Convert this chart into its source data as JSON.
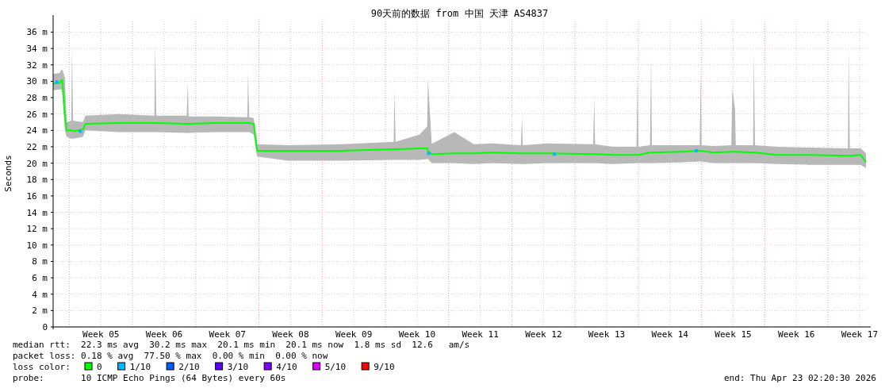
{
  "chart_data": {
    "type": "line",
    "title": "90天前的数据 from 中国 天津 AS4837",
    "ylabel": "Seconds",
    "legend_title": "loss color:",
    "legend": "bottom",
    "grid": true,
    "xlim": [
      "2026-01-23T00:00",
      "2026-04-23T00:00"
    ],
    "ylim": [
      0,
      37.5
    ],
    "xticks": [
      {
        "value": "2026-01-28T07:00",
        "label": "Week 05"
      },
      {
        "value": "2026-02-04T07:00",
        "label": "Week 06"
      },
      {
        "value": "2026-02-11T07:00",
        "label": "Week 07"
      },
      {
        "value": "2026-02-18T07:00",
        "label": "Week 08"
      },
      {
        "value": "2026-02-25T07:00",
        "label": "Week 09"
      },
      {
        "value": "2026-03-04T07:00",
        "label": "Week 10"
      },
      {
        "value": "2026-03-11T07:00",
        "label": "Week 11"
      },
      {
        "value": "2026-03-18T07:00",
        "label": "Week 12"
      },
      {
        "value": "2026-03-25T07:00",
        "label": "Week 13"
      },
      {
        "value": "2026-04-01T07:00",
        "label": "Week 14"
      },
      {
        "value": "2026-04-08T07:00",
        "label": "Week 15"
      },
      {
        "value": "2026-04-15T07:00",
        "label": "Week 16"
      },
      {
        "value": "2026-04-22T07:00",
        "label": "Week 17"
      }
    ],
    "yticks": [
      0,
      {
        "value": 2,
        "label": "2 m"
      },
      {
        "value": 4,
        "label": "4 m"
      },
      {
        "value": 6,
        "label": "6 m"
      },
      {
        "value": 8,
        "label": "8 m"
      },
      {
        "value": 10,
        "label": "10 m"
      },
      {
        "value": 12,
        "label": "12 m"
      },
      {
        "value": 14,
        "label": "14 m"
      },
      {
        "value": 16,
        "label": "16 m"
      },
      {
        "value": 18,
        "label": "18 m"
      },
      {
        "value": 20,
        "label": "20 m"
      },
      {
        "value": 22,
        "label": "22 m"
      },
      {
        "value": 24,
        "label": "24 m"
      },
      {
        "value": 26,
        "label": "26 m"
      },
      {
        "value": 28,
        "label": "28 m"
      },
      {
        "value": 30,
        "label": "30 m"
      },
      {
        "value": 32,
        "label": "32 m"
      },
      {
        "value": 34,
        "label": "34 m"
      },
      {
        "value": 36,
        "label": "36 m"
      }
    ],
    "ref_lines": [
      {
        "axis": "x",
        "value": "2026-01-24T19:00",
        "color": "#f4a0a0",
        "line_style": "dotted"
      },
      {
        "axis": "x",
        "value": "2026-01-31T19:00",
        "color": "#f4a0a0",
        "line_style": "dotted"
      },
      {
        "axis": "x",
        "value": "2026-02-07T19:00",
        "color": "#f4a0a0",
        "line_style": "dotted"
      },
      {
        "axis": "x",
        "value": "2026-02-14T19:00",
        "color": "#f4a0a0",
        "line_style": "dotted"
      },
      {
        "axis": "x",
        "value": "2026-02-21T19:00",
        "color": "#f4a0a0",
        "line_style": "dotted"
      },
      {
        "axis": "x",
        "value": "2026-02-28T19:00",
        "color": "#f4a0a0",
        "line_style": "dotted"
      },
      {
        "axis": "x",
        "value": "2026-03-07T19:00",
        "color": "#f4a0a0",
        "line_style": "dotted"
      },
      {
        "axis": "x",
        "value": "2026-03-14T19:00",
        "color": "#f4a0a0",
        "line_style": "dotted"
      },
      {
        "axis": "x",
        "value": "2026-03-21T19:00",
        "color": "#f4a0a0",
        "line_style": "dotted"
      },
      {
        "axis": "x",
        "value": "2026-03-28T19:00",
        "color": "#f4a0a0",
        "line_style": "dotted"
      },
      {
        "axis": "x",
        "value": "2026-04-04T19:00",
        "color": "#f4a0a0",
        "line_style": "dotted"
      },
      {
        "axis": "x",
        "value": "2026-04-11T19:00",
        "color": "#f4a0a0",
        "line_style": "dotted"
      },
      {
        "axis": "x",
        "value": "2026-04-18T19:00",
        "color": "#f4a0a0",
        "line_style": "dotted"
      }
    ],
    "series": [
      {
        "name": "0",
        "color": "#00ff00",
        "type": "line",
        "line_style": "solid",
        "x": [
          "2026-01-23T00:00",
          "2026-01-23T17:00",
          "2026-01-24T00:00",
          "2026-01-24T07:00",
          "2026-01-24T12:00",
          "2026-01-25T00:00",
          "2026-01-25T02:00",
          "2026-01-25T05:00",
          "2026-01-26T07:00",
          "2026-01-26T14:00",
          "2026-01-30T07:00",
          "2026-02-03T05:00",
          "2026-02-03T07:00",
          "2026-02-03T10:00",
          "2026-02-06T19:00",
          "2026-02-06T22:00",
          "2026-02-07T00:00",
          "2026-02-10T00:00",
          "2026-02-13T12:00",
          "2026-02-13T14:00",
          "2026-02-13T17:00",
          "2026-02-14T05:00",
          "2026-02-14T14:00",
          "2026-02-18T00:00",
          "2026-02-24T00:00",
          "2026-03-01T17:00",
          "2026-03-01T19:00",
          "2026-03-01T22:00",
          "2026-03-04T14:00",
          "2026-03-05T10:00",
          "2026-03-05T12:00",
          "2026-03-05T22:00",
          "2026-03-06T00:00",
          "2026-03-08T10:00",
          "2026-03-10T14:00",
          "2026-03-12T14:00",
          "2026-03-15T19:00",
          "2026-03-15T22:00",
          "2026-03-16T00:00",
          "2026-03-18T17:00",
          "2026-03-23T19:00",
          "2026-03-23T22:00",
          "2026-03-24T00:00",
          "2026-03-26T00:00",
          "2026-03-28T14:00",
          "2026-03-28T17:00",
          "2026-03-28T19:00",
          "2026-03-30T02:00",
          "2026-03-30T05:00",
          "2026-03-30T07:00",
          "2026-04-02T14:00",
          "2026-04-04T14:00",
          "2026-04-04T17:00",
          "2026-04-04T19:00",
          "2026-04-06T02:00",
          "2026-04-08T02:00",
          "2026-04-08T05:00",
          "2026-04-08T12:00",
          "2026-04-08T14:00",
          "2026-04-10T12:00",
          "2026-04-10T14:00",
          "2026-04-10T17:00",
          "2026-04-13T05:00",
          "2026-04-16T17:00",
          "2026-04-21T00:00",
          "2026-04-21T02:00",
          "2026-04-21T05:00",
          "2026-04-22T10:00",
          "2026-04-23T00:00"
        ],
        "values": [
          29.7,
          29.8,
          30.2,
          26.0,
          24.0,
          24.0,
          24.0,
          23.9,
          24.1,
          24.8,
          24.9,
          24.9,
          24.9,
          24.9,
          24.8,
          24.8,
          24.8,
          24.9,
          24.9,
          24.9,
          24.9,
          24.8,
          21.5,
          21.5,
          21.5,
          21.7,
          21.7,
          21.7,
          21.8,
          21.8,
          21.5,
          21.1,
          21.1,
          21.2,
          21.2,
          21.3,
          21.2,
          21.2,
          21.2,
          21.2,
          21.1,
          21.1,
          21.1,
          21.0,
          21.0,
          21.0,
          21.0,
          21.3,
          21.3,
          21.3,
          21.4,
          21.5,
          21.5,
          21.5,
          21.3,
          21.4,
          21.4,
          21.4,
          21.4,
          21.3,
          21.3,
          21.3,
          21.0,
          21.0,
          20.9,
          20.9,
          20.9,
          21.0,
          20.1
        ],
        "lower": [
          28.9,
          29,
          29,
          24,
          23.2,
          23.0,
          23.0,
          23.0,
          23.2,
          24.0,
          23.8,
          23.8,
          23.8,
          23.8,
          23.7,
          23.7,
          23.7,
          23.8,
          23.8,
          23.8,
          23.8,
          23.5,
          20.8,
          20.3,
          20.3,
          20.4,
          20.4,
          20.4,
          20.4,
          20.5,
          20.5,
          20.0,
          20.0,
          20.0,
          19.9,
          20.0,
          19.9,
          19.9,
          19.9,
          20.0,
          20.0,
          20.0,
          20.0,
          19.9,
          20.0,
          20.0,
          20.0,
          20.0,
          20.0,
          20.0,
          20.1,
          20.2,
          20.2,
          20.2,
          20.0,
          20.0,
          20.0,
          20.0,
          20.0,
          20.0,
          20.0,
          20.0,
          19.9,
          19.8,
          19.8,
          19.8,
          19.8,
          19.8,
          19.4
        ],
        "upper": [
          30.9,
          31,
          31.5,
          30.5,
          25.0,
          25.2,
          33.8,
          25.2,
          25.0,
          25.8,
          26.0,
          25.8,
          34.5,
          25.8,
          25.8,
          29.9,
          25.7,
          25.7,
          25.6,
          31.1,
          25.6,
          25.5,
          22.3,
          22.2,
          22.3,
          22.6,
          28.9,
          22.6,
          23.5,
          24.5,
          30.3,
          22.4,
          22.4,
          23.8,
          22.3,
          22.4,
          22.2,
          25.7,
          22.2,
          22.4,
          22.3,
          28.0,
          22.3,
          22.0,
          22.0,
          31.0,
          22.0,
          22.2,
          33.0,
          22.2,
          22.2,
          22.2,
          31.2,
          22.2,
          22.1,
          22.2,
          29.1,
          26.5,
          22.2,
          22.2,
          33.5,
          22.2,
          22.0,
          21.9,
          21.8,
          33.8,
          21.8,
          21.8,
          21.2
        ]
      },
      {
        "name": "1/10",
        "color": "#00b8ff",
        "type": "scatter",
        "marker": "square",
        "x": [
          "2026-01-23T10:00",
          "2026-01-26T00:00",
          "2026-03-05T14:00",
          "2026-03-19T12:00",
          "2026-04-04T05:00"
        ],
        "values": [
          29.9,
          23.9,
          21.2,
          21.1,
          21.5
        ]
      },
      {
        "name": "2/10",
        "color": "#0059ff",
        "type": "scatter",
        "marker": "square"
      },
      {
        "name": "3/10",
        "color": "#5e00ff",
        "type": "scatter",
        "marker": "square"
      },
      {
        "name": "4/10",
        "color": "#7e00ff",
        "type": "scatter",
        "marker": "square"
      },
      {
        "name": "5/10",
        "color": "#dd00ff",
        "type": "scatter",
        "marker": "square"
      },
      {
        "name": "9/10",
        "color": "#ff0000",
        "type": "scatter",
        "marker": "square"
      }
    ],
    "annotations": [
      "median rtt:  22.3 ms avg  30.2 ms max  20.1 ms min  20.1 ms now  1.8 ms sd  12.6   am/s",
      "packet loss: 0.18 % avg  77.50 % max  0.00 % min  0.00 % now",
      "probe:       10 ICMP Echo Pings (64 Bytes) every 60s",
      "end: Thu Apr 23 02:20:30 2026"
    ]
  }
}
